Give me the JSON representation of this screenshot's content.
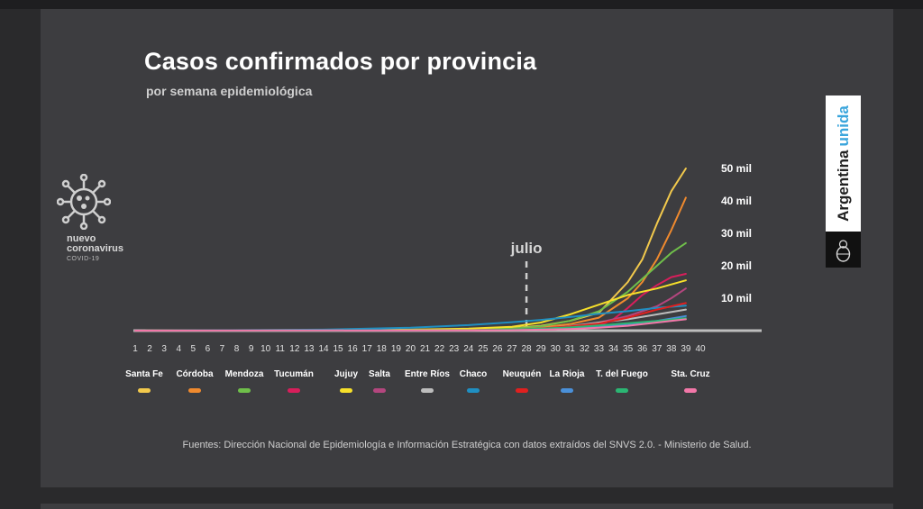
{
  "title": "Casos confirmados por provincia",
  "subtitle": "por semana epidemiológica",
  "logo": {
    "line1": "nuevo",
    "line2": "coronavirus",
    "line3": "COVID-19",
    "icon": "virus-icon"
  },
  "brand": {
    "word1": "Argentina",
    "word2": "unida",
    "accent": "#3aa5dc",
    "emblem": "coat-of-arms-icon"
  },
  "source": "Fuentes: Dirección Nacional de Epidemiología e Información Estratégica con datos extraídos del SNVS 2.0. - Ministerio de Salud.",
  "chart_data": {
    "type": "line",
    "title": "Casos confirmados por provincia",
    "subtitle": "por semana epidemiológica",
    "annotation": {
      "label": "julio",
      "x": 28
    },
    "x": [
      1,
      2,
      3,
      4,
      5,
      6,
      7,
      8,
      9,
      10,
      11,
      12,
      13,
      14,
      15,
      16,
      17,
      18,
      19,
      20,
      21,
      22,
      23,
      24,
      25,
      26,
      27,
      28,
      29,
      30,
      31,
      32,
      33,
      34,
      35,
      36,
      37,
      38,
      39,
      40
    ],
    "y_ticks": [
      10000,
      20000,
      30000,
      40000,
      50000
    ],
    "y_tick_labels": [
      "10 mil",
      "20 mil",
      "30 mil",
      "40 mil",
      "50 mil"
    ],
    "ylim": [
      0,
      52000
    ],
    "xlim": [
      1,
      40
    ],
    "grid": false,
    "legend_position": "bottom",
    "series": [
      {
        "name": "Santa Fe",
        "color": "#f2c94c",
        "points": [
          [
            1,
            0
          ],
          [
            20,
            200
          ],
          [
            24,
            400
          ],
          [
            27,
            800
          ],
          [
            29,
            1500
          ],
          [
            31,
            3000
          ],
          [
            33,
            5500
          ],
          [
            35,
            15000
          ],
          [
            36,
            22000
          ],
          [
            37,
            33000
          ],
          [
            38,
            43000
          ],
          [
            39,
            50000
          ]
        ]
      },
      {
        "name": "Córdoba",
        "color": "#f08a2e",
        "points": [
          [
            1,
            0
          ],
          [
            20,
            150
          ],
          [
            24,
            300
          ],
          [
            27,
            500
          ],
          [
            29,
            1000
          ],
          [
            31,
            2000
          ],
          [
            33,
            4000
          ],
          [
            35,
            10000
          ],
          [
            36,
            15000
          ],
          [
            37,
            22000
          ],
          [
            38,
            31000
          ],
          [
            39,
            41000
          ]
        ]
      },
      {
        "name": "Mendoza",
        "color": "#6fbf4a",
        "points": [
          [
            1,
            0
          ],
          [
            20,
            150
          ],
          [
            24,
            300
          ],
          [
            27,
            600
          ],
          [
            29,
            1300
          ],
          [
            31,
            3000
          ],
          [
            33,
            6000
          ],
          [
            35,
            12000
          ],
          [
            36,
            16000
          ],
          [
            37,
            20000
          ],
          [
            38,
            24000
          ],
          [
            39,
            27000
          ]
        ]
      },
      {
        "name": "Tucumán",
        "color": "#d81e5b",
        "points": [
          [
            1,
            0
          ],
          [
            24,
            100
          ],
          [
            27,
            200
          ],
          [
            30,
            400
          ],
          [
            32,
            800
          ],
          [
            33,
            1500
          ],
          [
            34,
            3500
          ],
          [
            35,
            7000
          ],
          [
            36,
            11000
          ],
          [
            37,
            14000
          ],
          [
            38,
            16500
          ],
          [
            39,
            17500
          ]
        ]
      },
      {
        "name": "Jujuy",
        "color": "#f7e02a",
        "points": [
          [
            1,
            0
          ],
          [
            20,
            300
          ],
          [
            24,
            600
          ],
          [
            27,
            1200
          ],
          [
            29,
            2500
          ],
          [
            31,
            5000
          ],
          [
            33,
            8000
          ],
          [
            35,
            11000
          ],
          [
            37,
            13000
          ],
          [
            39,
            15500
          ]
        ]
      },
      {
        "name": "Salta",
        "color": "#b4467e",
        "points": [
          [
            1,
            0
          ],
          [
            24,
            100
          ],
          [
            27,
            200
          ],
          [
            29,
            500
          ],
          [
            31,
            1200
          ],
          [
            33,
            2500
          ],
          [
            35,
            4500
          ],
          [
            37,
            7500
          ],
          [
            38,
            10000
          ],
          [
            39,
            13000
          ]
        ]
      },
      {
        "name": "Entre Ríos",
        "color": "#bdbdbd",
        "points": [
          [
            1,
            0
          ],
          [
            24,
            150
          ],
          [
            27,
            300
          ],
          [
            29,
            700
          ],
          [
            31,
            1400
          ],
          [
            33,
            2500
          ],
          [
            35,
            3500
          ],
          [
            37,
            5000
          ],
          [
            39,
            6500
          ]
        ]
      },
      {
        "name": "Chaco",
        "color": "#1f8fc2",
        "points": [
          [
            1,
            0
          ],
          [
            14,
            300
          ],
          [
            20,
            900
          ],
          [
            24,
            1700
          ],
          [
            27,
            2600
          ],
          [
            29,
            3300
          ],
          [
            31,
            4200
          ],
          [
            33,
            5200
          ],
          [
            35,
            6000
          ],
          [
            37,
            7000
          ],
          [
            39,
            7700
          ]
        ]
      },
      {
        "name": "Neuquén",
        "color": "#e0201f",
        "points": [
          [
            1,
            0
          ],
          [
            24,
            150
          ],
          [
            27,
            300
          ],
          [
            29,
            700
          ],
          [
            31,
            1300
          ],
          [
            33,
            2200
          ],
          [
            35,
            4000
          ],
          [
            37,
            6500
          ],
          [
            39,
            8500
          ]
        ]
      },
      {
        "name": "La Rioja",
        "color": "#4a90d9",
        "points": [
          [
            1,
            0
          ],
          [
            24,
            100
          ],
          [
            27,
            200
          ],
          [
            29,
            400
          ],
          [
            31,
            700
          ],
          [
            33,
            1200
          ],
          [
            35,
            2000
          ],
          [
            37,
            3000
          ],
          [
            39,
            4500
          ]
        ]
      },
      {
        "name": "T. del Fuego",
        "color": "#2bb673",
        "points": [
          [
            1,
            0
          ],
          [
            24,
            100
          ],
          [
            27,
            300
          ],
          [
            29,
            600
          ],
          [
            31,
            1000
          ],
          [
            33,
            1600
          ],
          [
            35,
            2300
          ],
          [
            37,
            3000
          ],
          [
            39,
            3800
          ]
        ]
      },
      {
        "name": "Sta. Cruz",
        "color": "#f277a8",
        "points": [
          [
            1,
            0
          ],
          [
            24,
            80
          ],
          [
            27,
            150
          ],
          [
            29,
            300
          ],
          [
            31,
            500
          ],
          [
            33,
            900
          ],
          [
            35,
            1500
          ],
          [
            37,
            2500
          ],
          [
            39,
            3500
          ]
        ]
      }
    ]
  }
}
